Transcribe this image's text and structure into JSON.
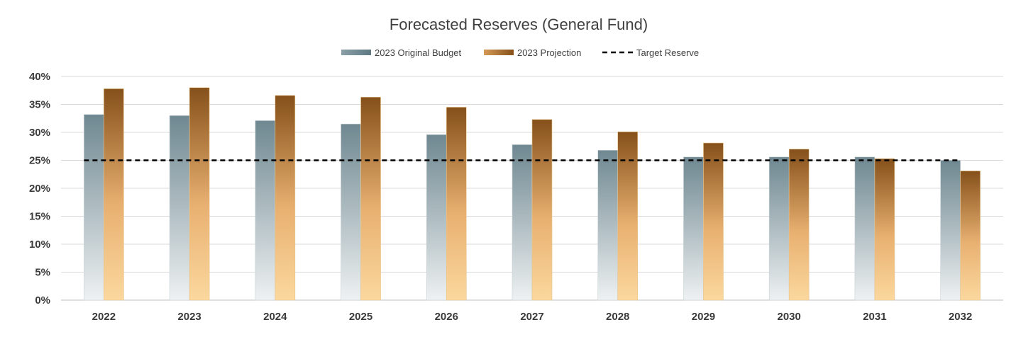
{
  "chart_data": {
    "type": "bar",
    "title": "Forecasted Reserves (General Fund)",
    "xlabel": "",
    "ylabel": "",
    "categories": [
      "2022",
      "2023",
      "2024",
      "2025",
      "2026",
      "2027",
      "2028",
      "2029",
      "2030",
      "2031",
      "2032"
    ],
    "series": [
      {
        "name": "2023 Original Budget",
        "values": [
          33.2,
          33.0,
          32.1,
          31.5,
          29.6,
          27.8,
          26.8,
          25.6,
          25.6,
          25.6,
          25.0
        ],
        "color_top": "#6f8891",
        "color_bottom": "#eef1f2"
      },
      {
        "name": "2023 Projection",
        "values": [
          37.8,
          38.0,
          36.6,
          36.3,
          34.5,
          32.3,
          30.1,
          28.1,
          27.0,
          25.3,
          23.1
        ],
        "color_top": "#85501a",
        "color_bottom": "#fbd89e"
      }
    ],
    "reference_line": {
      "name": "Target Reserve",
      "value": 25,
      "style": "dashed",
      "color": "#000000"
    },
    "y_ticks": [
      "0%",
      "5%",
      "10%",
      "15%",
      "20%",
      "25%",
      "30%",
      "35%",
      "40%"
    ],
    "ylim": [
      0,
      40
    ],
    "grid": true,
    "legend_position": "top-center"
  }
}
